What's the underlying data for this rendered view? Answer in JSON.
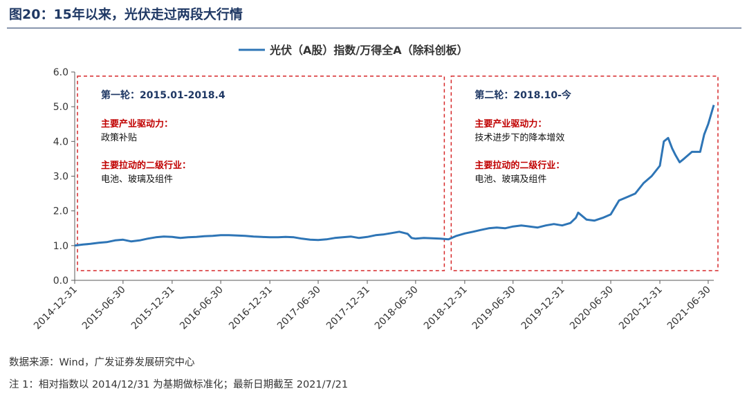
{
  "figure": {
    "title": "图20：15年以来，光伏走过两段大行情",
    "source": "数据来源：Wind，广发证券发展研究中心",
    "footnote": "注 1：相对指数以 2014/12/31 为基期做标准化；最新日期截至 2021/7/21"
  },
  "chart_data": {
    "type": "line",
    "legend": {
      "label": "光伏（A股）指数/万得全A（除科创板）",
      "position": "top-center"
    },
    "ylim": [
      0,
      6
    ],
    "yticks": [
      "0.0",
      "1.0",
      "2.0",
      "3.0",
      "4.0",
      "5.0",
      "6.0"
    ],
    "xticks": [
      "2014-12-31",
      "2015-06-30",
      "2015-12-31",
      "2016-06-30",
      "2016-12-31",
      "2017-06-30",
      "2017-12-31",
      "2018-06-30",
      "2018-12-31",
      "2019-06-30",
      "2019-12-31",
      "2020-06-30",
      "2020-12-31",
      "2021-06-30"
    ],
    "grid": false,
    "series": [
      {
        "name": "光伏（A股）指数/万得全A（除科创板）",
        "color": "#2e75b6",
        "points": [
          [
            "2014-12-31",
            1.0
          ],
          [
            "2015-01-31",
            1.03
          ],
          [
            "2015-02-28",
            1.05
          ],
          [
            "2015-03-31",
            1.08
          ],
          [
            "2015-04-30",
            1.1
          ],
          [
            "2015-05-31",
            1.15
          ],
          [
            "2015-06-30",
            1.17
          ],
          [
            "2015-07-31",
            1.12
          ],
          [
            "2015-08-31",
            1.15
          ],
          [
            "2015-09-30",
            1.2
          ],
          [
            "2015-10-31",
            1.24
          ],
          [
            "2015-11-30",
            1.26
          ],
          [
            "2015-12-31",
            1.25
          ],
          [
            "2016-01-31",
            1.22
          ],
          [
            "2016-02-29",
            1.24
          ],
          [
            "2016-03-31",
            1.25
          ],
          [
            "2016-04-30",
            1.27
          ],
          [
            "2016-05-31",
            1.28
          ],
          [
            "2016-06-30",
            1.3
          ],
          [
            "2016-07-31",
            1.3
          ],
          [
            "2016-08-31",
            1.29
          ],
          [
            "2016-09-30",
            1.28
          ],
          [
            "2016-10-31",
            1.26
          ],
          [
            "2016-11-30",
            1.25
          ],
          [
            "2016-12-31",
            1.24
          ],
          [
            "2017-01-31",
            1.24
          ],
          [
            "2017-02-28",
            1.25
          ],
          [
            "2017-03-31",
            1.24
          ],
          [
            "2017-04-30",
            1.2
          ],
          [
            "2017-05-31",
            1.17
          ],
          [
            "2017-06-30",
            1.16
          ],
          [
            "2017-07-31",
            1.18
          ],
          [
            "2017-08-31",
            1.22
          ],
          [
            "2017-09-30",
            1.24
          ],
          [
            "2017-10-31",
            1.26
          ],
          [
            "2017-11-30",
            1.22
          ],
          [
            "2017-12-31",
            1.25
          ],
          [
            "2018-01-31",
            1.3
          ],
          [
            "2018-02-28",
            1.32
          ],
          [
            "2018-03-31",
            1.36
          ],
          [
            "2018-04-30",
            1.4
          ],
          [
            "2018-05-31",
            1.34
          ],
          [
            "2018-06-15",
            1.22
          ],
          [
            "2018-06-30",
            1.2
          ],
          [
            "2018-07-31",
            1.22
          ],
          [
            "2018-08-31",
            1.21
          ],
          [
            "2018-09-30",
            1.2
          ],
          [
            "2018-10-31",
            1.18
          ],
          [
            "2018-11-30",
            1.28
          ],
          [
            "2018-12-31",
            1.35
          ],
          [
            "2019-01-31",
            1.4
          ],
          [
            "2019-02-28",
            1.45
          ],
          [
            "2019-03-31",
            1.5
          ],
          [
            "2019-04-30",
            1.52
          ],
          [
            "2019-05-31",
            1.5
          ],
          [
            "2019-06-30",
            1.55
          ],
          [
            "2019-07-31",
            1.58
          ],
          [
            "2019-08-31",
            1.55
          ],
          [
            "2019-09-30",
            1.52
          ],
          [
            "2019-10-31",
            1.58
          ],
          [
            "2019-11-30",
            1.62
          ],
          [
            "2019-12-31",
            1.58
          ],
          [
            "2020-01-31",
            1.65
          ],
          [
            "2020-02-20",
            1.8
          ],
          [
            "2020-02-29",
            1.95
          ],
          [
            "2020-03-31",
            1.75
          ],
          [
            "2020-04-30",
            1.72
          ],
          [
            "2020-05-31",
            1.8
          ],
          [
            "2020-06-30",
            1.9
          ],
          [
            "2020-07-31",
            2.3
          ],
          [
            "2020-08-31",
            2.4
          ],
          [
            "2020-09-30",
            2.5
          ],
          [
            "2020-10-31",
            2.8
          ],
          [
            "2020-11-30",
            3.0
          ],
          [
            "2020-12-31",
            3.3
          ],
          [
            "2021-01-15",
            4.0
          ],
          [
            "2021-01-31",
            4.1
          ],
          [
            "2021-02-15",
            3.8
          ],
          [
            "2021-02-28",
            3.6
          ],
          [
            "2021-03-15",
            3.4
          ],
          [
            "2021-03-31",
            3.5
          ],
          [
            "2021-04-30",
            3.7
          ],
          [
            "2021-05-31",
            3.7
          ],
          [
            "2021-06-15",
            4.2
          ],
          [
            "2021-06-30",
            4.5
          ],
          [
            "2021-07-21",
            5.05
          ]
        ]
      }
    ],
    "annotations": [
      {
        "box_range": [
          "2014-12-31",
          "2018-09-30"
        ],
        "heading": "第一轮：2015.01-2018.4",
        "driver_label": "主要产业驱动力：",
        "driver": "政策补贴",
        "industry_label": "主要拉动的二级行业：",
        "industry": "电池、玻璃及组件"
      },
      {
        "box_range": [
          "2018-10-31",
          "2021-07-21"
        ],
        "heading": "第二轮：2018.10-今",
        "driver_label": "主要产业驱动力：",
        "driver": "技术进步下的降本增效",
        "industry_label": "主要拉动的二级行业：",
        "industry": "电池、玻璃及组件"
      }
    ],
    "colors": {
      "line": "#2e75b6",
      "box": "#d62728",
      "heading": "#1f3864",
      "emphasis": "#c00000",
      "axis": "#595959"
    }
  }
}
